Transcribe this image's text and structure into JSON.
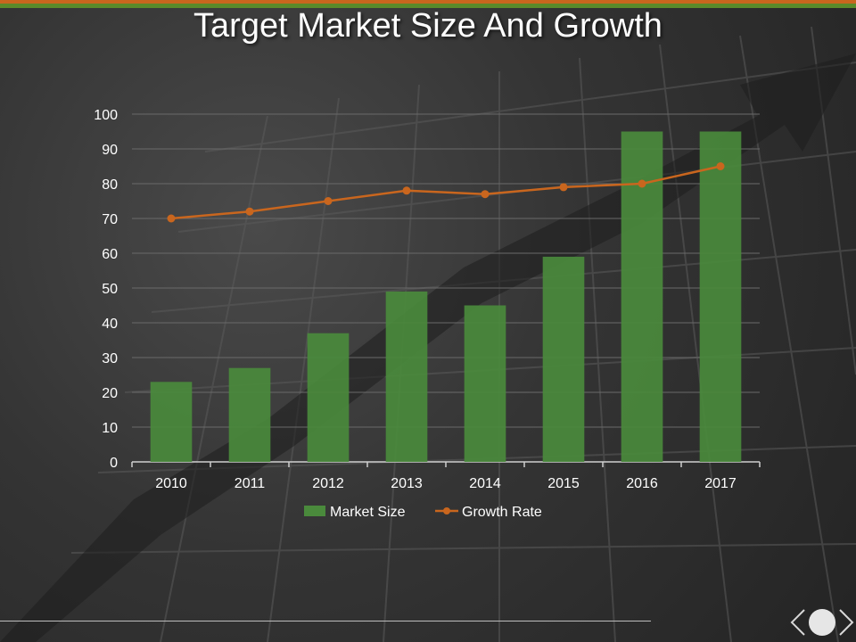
{
  "slide": {
    "title": "Target Market Size And Growth"
  },
  "colors": {
    "bar": "#4a8a3c",
    "line": "#c9661e",
    "accent_green": "#5a8a2a",
    "accent_orange": "#c9661e"
  },
  "chart_data": {
    "type": "bar",
    "title": "Target Market Size And Growth",
    "categories": [
      "2010",
      "2011",
      "2012",
      "2013",
      "2014",
      "2015",
      "2016",
      "2017"
    ],
    "series": [
      {
        "name": "Market Size",
        "kind": "bar",
        "values": [
          23,
          27,
          37,
          49,
          45,
          59,
          95,
          95
        ]
      },
      {
        "name": "Growth Rate",
        "kind": "line",
        "values": [
          70,
          72,
          75,
          78,
          77,
          79,
          80,
          85
        ]
      }
    ],
    "ylim": [
      0,
      100
    ],
    "yticks": [
      0,
      10,
      20,
      30,
      40,
      50,
      60,
      70,
      80,
      90,
      100
    ],
    "xlabel": "",
    "ylabel": "",
    "legend": "bottom",
    "grid": true
  }
}
